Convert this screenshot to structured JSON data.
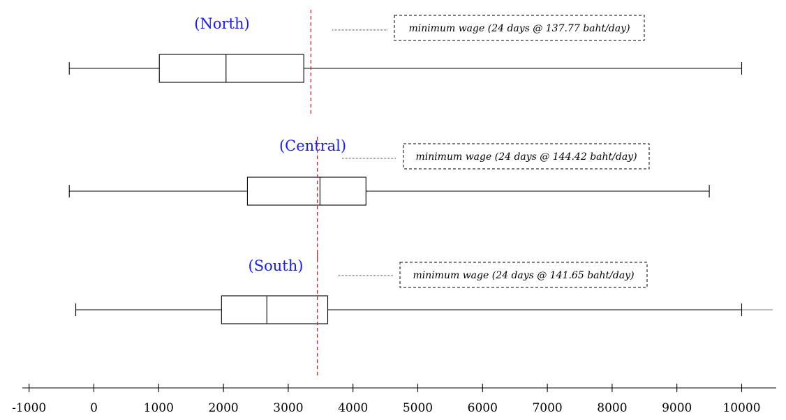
{
  "chart_data": {
    "type": "boxplot",
    "orientation": "horizontal",
    "xlim": [
      -1000,
      10600
    ],
    "x_ticks": [
      -1000,
      0,
      1000,
      2000,
      3000,
      4000,
      5000,
      6000,
      7000,
      8000,
      9000,
      10000
    ],
    "x_tick_labels": [
      "-1000",
      "0",
      "1000",
      "2000",
      "3000",
      "4000",
      "5000",
      "6000",
      "7000",
      "8000",
      "9000",
      "10000"
    ],
    "series": [
      {
        "name": "(North)",
        "whisker_low": -380,
        "q1": 1010,
        "median": 2040,
        "q3": 3240,
        "whisker_high": 10000,
        "minimum_wage": 3350,
        "minimum_wage_label": "minimum wage (24 days @ 137.77 baht/day)"
      },
      {
        "name": "(Central)",
        "whisker_low": -380,
        "q1": 2370,
        "median": 3490,
        "q3": 4200,
        "whisker_high": 9500,
        "minimum_wage": 3450,
        "minimum_wage_label": "minimum wage (24 days @ 144.42 baht/day)"
      },
      {
        "name": "(South)",
        "whisker_low": -280,
        "q1": 1970,
        "median": 2670,
        "q3": 3610,
        "whisker_high": 10000,
        "whisker_tail_high": 10480,
        "minimum_wage": 3450,
        "minimum_wage_label": "minimum wage (24 days @ 141.65 baht/day)"
      }
    ],
    "colors": {
      "region_label": "#1a1aff",
      "minimum_wage_line": "#e02020"
    },
    "grid": false,
    "legend": "none"
  }
}
